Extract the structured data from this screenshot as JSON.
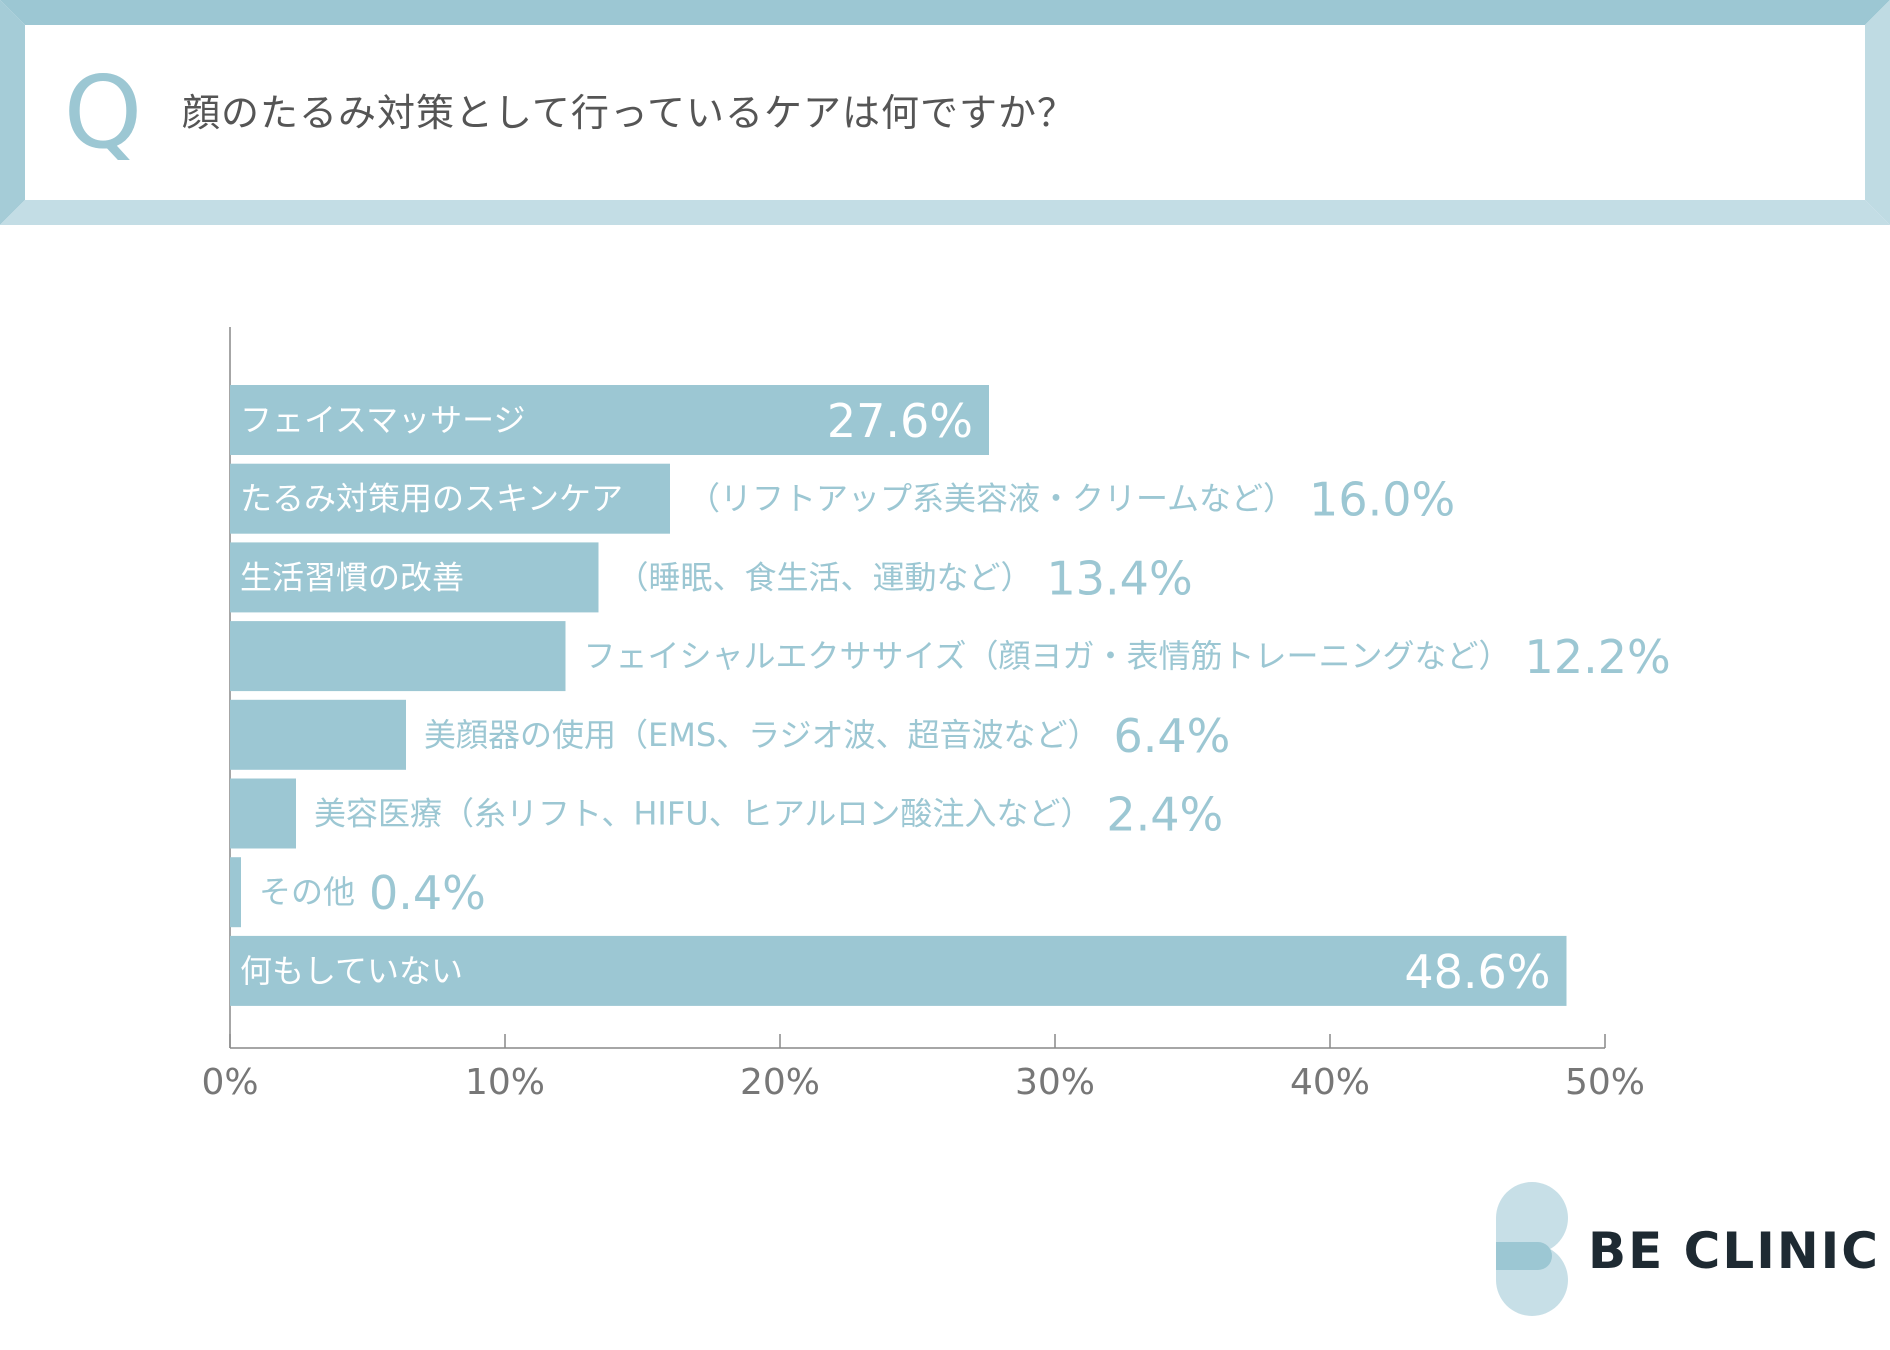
{
  "header": {
    "q_letter": "Q",
    "question": "顔のたるみ対策として行っているケアは何ですか？"
  },
  "colors": {
    "bar": "#9cc7d3",
    "frame": "#9cc7d3",
    "logo_text": "#1e2a32"
  },
  "chart_data": {
    "type": "bar",
    "orientation": "horizontal",
    "categories": [
      "フェイスマッサージ",
      "たるみ対策用のスキンケア（リフトアップ系美容液・クリームなど）",
      "生活習慣の改善（睡眠、食生活、運動など）",
      "フェイシャルエクササイズ（顔ヨガ・表情筋トレーニングなど）",
      "美顔器の使用（EMS、ラジオ波、超音波など）",
      "美容医療（糸リフト、HIFU、ヒアルロン酸注入など）",
      "その他",
      "何もしていない"
    ],
    "label_parts": [
      {
        "inside": "フェイスマッサージ",
        "outside": ""
      },
      {
        "inside": "たるみ対策用のスキンケア",
        "outside": "（リフトアップ系美容液・クリームなど）"
      },
      {
        "inside": "生活習慣の改善",
        "outside": "（睡眠、食生活、運動など）"
      },
      {
        "inside": "",
        "outside": "フェイシャルエクササイズ（顔ヨガ・表情筋トレーニングなど）"
      },
      {
        "inside": "",
        "outside": "美顔器の使用（EMS、ラジオ波、超音波など）"
      },
      {
        "inside": "",
        "outside": "美容医療（糸リフト、HIFU、ヒアルロン酸注入など）"
      },
      {
        "inside": "",
        "outside": "その他"
      },
      {
        "inside": "何もしていない",
        "outside": ""
      }
    ],
    "values": [
      27.6,
      16.0,
      13.4,
      12.2,
      6.4,
      2.4,
      0.4,
      48.6
    ],
    "value_labels": [
      "27.6%",
      "16.0%",
      "13.4%",
      "12.2%",
      "6.4%",
      "2.4%",
      "0.4%",
      "48.6%"
    ],
    "value_inside": [
      true,
      false,
      false,
      false,
      false,
      false,
      false,
      true
    ],
    "xlim": [
      0,
      50
    ],
    "xticks": [
      0,
      10,
      20,
      30,
      40,
      50
    ],
    "xtick_labels": [
      "0%",
      "10%",
      "20%",
      "30%",
      "40%",
      "50%"
    ],
    "grid": false,
    "legend": "none"
  },
  "logo": {
    "text": "BE CLINIC"
  }
}
